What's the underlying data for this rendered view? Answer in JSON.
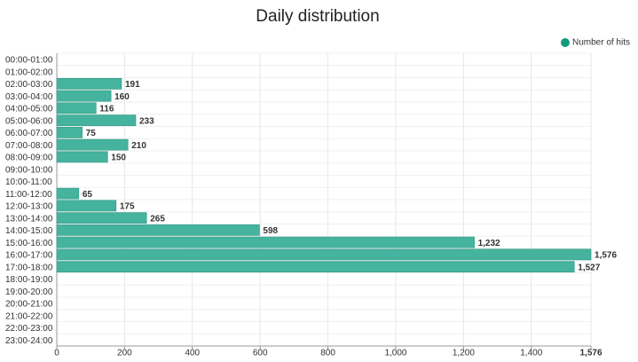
{
  "chart_data": {
    "type": "bar",
    "orientation": "horizontal",
    "title": "Daily distribution",
    "categories": [
      "00:00-01:00",
      "01:00-02:00",
      "02:00-03:00",
      "03:00-04:00",
      "04:00-05:00",
      "05:00-06:00",
      "06:00-07:00",
      "07:00-08:00",
      "08:00-09:00",
      "09:00-10:00",
      "10:00-11:00",
      "11:00-12:00",
      "12:00-13:00",
      "13:00-14:00",
      "14:00-15:00",
      "15:00-16:00",
      "16:00-17:00",
      "17:00-18:00",
      "18:00-19:00",
      "19:00-20:00",
      "20:00-21:00",
      "21:00-22:00",
      "22:00-23:00",
      "23:00-24:00"
    ],
    "series": [
      {
        "name": "Number of hits",
        "color": "#45b39d",
        "values": [
          null,
          null,
          191,
          160,
          116,
          233,
          75,
          210,
          150,
          null,
          null,
          65,
          175,
          265,
          598,
          1232,
          1576,
          1527,
          null,
          null,
          null,
          null,
          null,
          null
        ],
        "value_labels": [
          null,
          null,
          "191",
          "160",
          "116",
          "233",
          "75",
          "210",
          "150",
          null,
          null,
          "65",
          "175",
          "265",
          "598",
          "1,232",
          "1,576",
          "1,527",
          null,
          null,
          null,
          null,
          null,
          null
        ]
      }
    ],
    "xlim": [
      0,
      1576
    ],
    "xticks": [
      0,
      200,
      400,
      600,
      800,
      {
        "value": 1000,
        "label": "1,000"
      },
      {
        "value": 1200,
        "label": "1,200"
      },
      {
        "value": 1400,
        "label": "1,400"
      },
      {
        "value": 1576,
        "label": "1,576"
      }
    ],
    "grid": true,
    "legend": "top-right"
  }
}
